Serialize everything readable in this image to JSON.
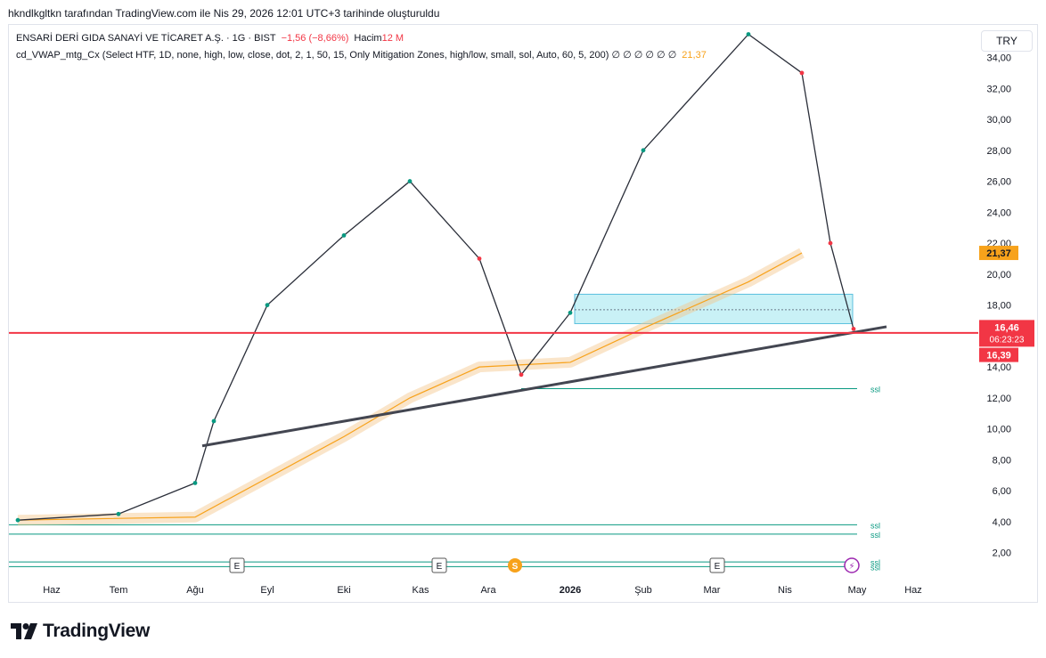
{
  "header": {
    "snapshot_line": "hkndlkgltkn tarafından TradingView.com ile Nis 29, 2026 12:01 UTC+3 tarihinde oluşturuldu"
  },
  "legend": {
    "symbol": "ENSARİ DERİ GIDA SANAYİ VE TİCARET A.Ş. · 1G · BIST",
    "change": "−1,56 (−8,66%)",
    "volume_label": "Hacim",
    "volume_value": "12 M",
    "indicator": "cd_VWAP_mtg_Cx (Select HTF, 1D, none, high, low, close, dot, 2, 1, 50, 15, Only Mitigation Zones, high/low, small, sol, Auto, 60, 5, 200)",
    "indicator_dots": "∅ ∅ ∅ ∅ ∅ ∅",
    "indicator_value": "21,37"
  },
  "currency": "TRY",
  "brand": "TradingView",
  "colors": {
    "up": "#089981",
    "down": "#f23645",
    "vwap": "#f7a21b",
    "support_line": "#f23645",
    "trendline": "#434651",
    "zone": "#b2ebf2",
    "ssl": "#089981"
  },
  "chart_data": {
    "type": "line",
    "title": "ENSARİ DERİ GIDA SANAYİ VE TİCARET A.Ş. · 1G · BIST",
    "x_ticks": [
      "Haz",
      "Tem",
      "Ağu",
      "Eyl",
      "Eki",
      "Kas",
      "Ara",
      "2026",
      "Şub",
      "Mar",
      "Nis",
      "May",
      "Haz"
    ],
    "y_ticks": [
      "2,00",
      "4,00",
      "6,00",
      "8,00",
      "10,00",
      "12,00",
      "14,00",
      "16,00",
      "18,00",
      "20,00",
      "22,00",
      "24,00",
      "26,00",
      "28,00",
      "30,00",
      "32,00",
      "34,00"
    ],
    "ylim": [
      1,
      36.5
    ],
    "price_path_approx": [
      {
        "t": "Haz",
        "v": 4.1
      },
      {
        "t": "Tem",
        "v": 4.5
      },
      {
        "t": "Ağu",
        "v": 6.5
      },
      {
        "t": "Ağu-mid",
        "v": 10.5
      },
      {
        "t": "Eyl",
        "v": 18.0
      },
      {
        "t": "Eki",
        "v": 22.5
      },
      {
        "t": "Kas",
        "v": 26.0
      },
      {
        "t": "Ara",
        "v": 21.0
      },
      {
        "t": "Ara-mid",
        "v": 13.5
      },
      {
        "t": "2026",
        "v": 17.5
      },
      {
        "t": "Şub",
        "v": 28.0
      },
      {
        "t": "Mar",
        "v": 35.5
      },
      {
        "t": "Nis",
        "v": 33.0
      },
      {
        "t": "Nis-late",
        "v": 22.0
      },
      {
        "t": "May",
        "v": 16.46
      }
    ],
    "vwap_path_approx": [
      {
        "t": "Haz",
        "v": 4.1
      },
      {
        "t": "Ağu",
        "v": 4.3
      },
      {
        "t": "Eki",
        "v": 9.5
      },
      {
        "t": "Kas",
        "v": 12.0
      },
      {
        "t": "Ara",
        "v": 14.0
      },
      {
        "t": "2026",
        "v": 14.3
      },
      {
        "t": "Şub",
        "v": 16.5
      },
      {
        "t": "Mar",
        "v": 19.5
      },
      {
        "t": "Nis",
        "v": 21.37
      }
    ],
    "horizontal_line": 16.2,
    "zone": {
      "from": 16.8,
      "to": 18.7,
      "mid": 17.7
    },
    "trendline": {
      "from": {
        "t": "Ağu",
        "v": 8.9
      },
      "to": {
        "t": "May",
        "v": 16.6
      }
    },
    "ssl_levels": [
      {
        "label": "ssl",
        "value": 12.6
      },
      {
        "label": "ssl",
        "value": 3.8
      },
      {
        "label": "ssl",
        "value": 3.2
      },
      {
        "label": "ssl",
        "value": 1.4
      },
      {
        "label": "ssl",
        "value": 1.1
      }
    ],
    "price_labels": {
      "vwap": "21,37",
      "last": "16,46",
      "countdown": "06:23:23",
      "low": "16,39"
    },
    "event_markers": [
      "E",
      "E",
      "S",
      "E",
      "⚡"
    ]
  }
}
